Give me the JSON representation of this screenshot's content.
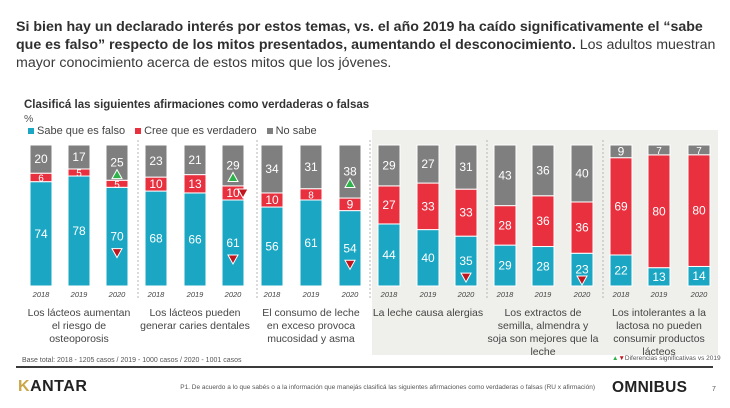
{
  "headline": {
    "bold": "Si bien hay un declarado interés por estos temas, vs. el año 2019 ha caído significativamente el “sabe que es falso” respecto de los mitos presentados, aumentando el desconocimiento.",
    "regular": " Los adultos muestran mayor conocimiento acerca de estos mitos que los jóvenes."
  },
  "colors": {
    "falso": "#1ba7c4",
    "verdadero": "#e8303f",
    "nosabe": "#7f7f7f",
    "up": "#2eb34a",
    "down": "#c0161e"
  },
  "chart_data": {
    "type": "bar",
    "stacked": true,
    "title": "Clasificá las siguientes afirmaciones como verdaderas o falsas",
    "unit": "%",
    "legend": [
      "Sabe que es falso",
      "Cree que es verdadero",
      "No sabe"
    ],
    "legend_position": "top-left",
    "ylim": [
      0,
      100
    ],
    "years": [
      "2018",
      "2019",
      "2020"
    ],
    "groups": [
      {
        "label": "Los lácteos aumentan el riesgo de osteoporosis",
        "falso": [
          74,
          78,
          70
        ],
        "verdadero": [
          6,
          5,
          5
        ],
        "nosabe": [
          20,
          17,
          25
        ],
        "markers": [
          {
            "year": 2,
            "series": "nosabe",
            "dir": "up"
          },
          {
            "year": 2,
            "series": "falso",
            "dir": "down"
          }
        ]
      },
      {
        "label": "Los lácteos pueden generar caries dentales",
        "falso": [
          68,
          66,
          61
        ],
        "verdadero": [
          10,
          13,
          10
        ],
        "nosabe": [
          23,
          21,
          29
        ],
        "markers": [
          {
            "year": 2,
            "series": "nosabe",
            "dir": "up"
          },
          {
            "year": 2,
            "series": "verdadero",
            "dir": "down"
          },
          {
            "year": 2,
            "series": "falso",
            "dir": "down"
          }
        ]
      },
      {
        "label": "El consumo de leche en exceso provoca mucosidad y asma",
        "falso": [
          56,
          61,
          54
        ],
        "verdadero": [
          10,
          8,
          9
        ],
        "nosabe": [
          34,
          31,
          38
        ],
        "markers": [
          {
            "year": 2,
            "series": "nosabe",
            "dir": "up"
          },
          {
            "year": 2,
            "series": "falso",
            "dir": "down"
          }
        ]
      },
      {
        "label": "La leche causa alergias",
        "falso": [
          44,
          40,
          35
        ],
        "verdadero": [
          27,
          33,
          33
        ],
        "nosabe": [
          29,
          27,
          31
        ],
        "markers": [
          {
            "year": 2,
            "series": "falso",
            "dir": "down"
          }
        ]
      },
      {
        "label": "Los extractos de semilla, almendra y soja son mejores que la leche",
        "falso": [
          29,
          28,
          23
        ],
        "verdadero": [
          28,
          36,
          36
        ],
        "nosabe": [
          43,
          36,
          40
        ],
        "markers": [
          {
            "year": 2,
            "series": "falso",
            "dir": "down"
          }
        ]
      },
      {
        "label": "Los intolerantes a la lactosa no pueden consumir productos lácteos",
        "falso": [
          22,
          13,
          14
        ],
        "verdadero": [
          69,
          80,
          80
        ],
        "nosabe": [
          9,
          7,
          7
        ],
        "markers": []
      }
    ]
  },
  "footer": {
    "base": "Base total: 2018 - 1205 casos / 2019 - 1000 casos / 2020 - 1001 casos",
    "sig_up": "▲",
    "sig_down": "▼",
    "sig_text": "Diferencias significativas vs 2019",
    "logo_k": "K",
    "logo_rest": "ANTAR",
    "question": "P1. De acuerdo a lo que sabés o a la información que manejás clasificá las siguientes afirmaciones como verdaderas o falsas (RU x afirmación)",
    "brand": "OMNIBUS",
    "page": "7"
  }
}
